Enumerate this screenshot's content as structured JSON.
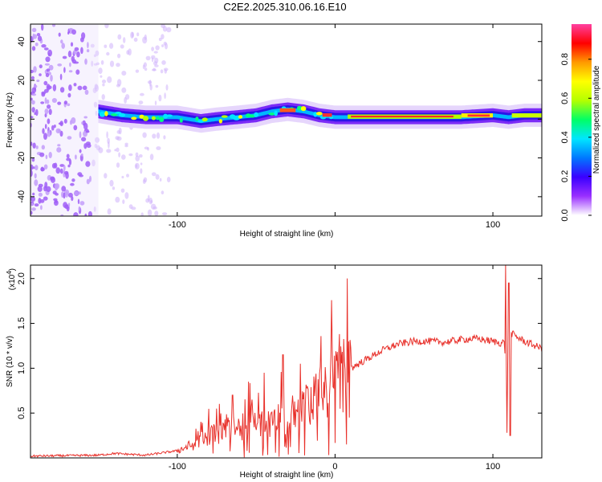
{
  "title": "C2E2.2025.310.06.16.E10",
  "chart_data": [
    {
      "type": "heatmap",
      "name": "spectrogram",
      "xlabel": "Height of straight line (km)",
      "ylabel": "Frequency (Hz)",
      "xlim": [
        -193,
        131
      ],
      "ylim": [
        -50,
        49
      ],
      "xticks": [
        -100,
        0,
        100
      ],
      "xtick_labels": [
        "-100",
        "",
        "100"
      ],
      "yticks": [
        -40,
        -20,
        0,
        20,
        40
      ],
      "ytick_labels": [
        "-40",
        "-20",
        "0",
        "20",
        "40"
      ],
      "noise_region_x": [
        -193,
        -105
      ],
      "ridge": {
        "x": [
          -150,
          -135,
          -120,
          -100,
          -85,
          -75,
          -62,
          -50,
          -40,
          -30,
          -20,
          -10,
          0,
          20,
          50,
          80,
          100,
          110,
          120,
          131
        ],
        "y": [
          4,
          2,
          1,
          1,
          -1,
          0,
          1,
          2,
          4,
          5,
          4,
          2,
          1,
          1,
          1,
          1,
          2,
          1,
          2,
          2
        ]
      },
      "colorbar": {
        "label": "Normalized spectral amplitude",
        "range": [
          0,
          1
        ],
        "ticks": [
          0.0,
          0.2,
          0.4,
          0.6,
          0.8
        ],
        "tick_labels": [
          "0.0",
          "0.2",
          "0.4",
          "0.6",
          "0.8"
        ],
        "colormap": [
          "#ffffff",
          "#9a30ff",
          "#3a00ff",
          "#0078ff",
          "#00e6ff",
          "#00ff66",
          "#b4ff00",
          "#ffff00",
          "#ff9a00",
          "#ff0000",
          "#ff40a0"
        ]
      }
    },
    {
      "type": "line",
      "name": "snr",
      "xlabel": "Height of straight line (km)",
      "ylabel": "SNR (10 * v/v)",
      "y_multiplier_label": "(x10",
      "y_multiplier_exp": "4",
      "y_multiplier_close": ")",
      "xlim": [
        -193,
        131
      ],
      "ylim": [
        0,
        2.15
      ],
      "xticks": [
        -100,
        0,
        100
      ],
      "xtick_labels": [
        "-100",
        "0",
        "100"
      ],
      "yticks": [
        0.5,
        1.0,
        1.5,
        2.0
      ],
      "ytick_labels": [
        "0.5",
        "1.0",
        "1.5",
        "2.0"
      ],
      "color": "#e8302a",
      "envelope": {
        "x": [
          -193,
          -150,
          -140,
          -120,
          -100,
          -90,
          -80,
          -70,
          -60,
          -50,
          -40,
          -30,
          -20,
          -10,
          0,
          5,
          10,
          20,
          30,
          40,
          50,
          60,
          70,
          80,
          90,
          100,
          105,
          107,
          109,
          111,
          115,
          120,
          131
        ],
        "y": [
          0.02,
          0.03,
          0.05,
          0.03,
          0.08,
          0.15,
          0.25,
          0.3,
          0.35,
          0.38,
          0.42,
          0.45,
          0.55,
          0.7,
          0.85,
          0.92,
          1.0,
          1.1,
          1.2,
          1.27,
          1.3,
          1.3,
          1.29,
          1.32,
          1.33,
          1.3,
          1.28,
          1.3,
          0.9,
          1.4,
          1.35,
          1.3,
          1.22
        ]
      },
      "spikes": [
        {
          "x": -75,
          "y": 0.55
        },
        {
          "x": -65,
          "y": 0.7
        },
        {
          "x": -55,
          "y": 0.85
        },
        {
          "x": -45,
          "y": 0.95
        },
        {
          "x": -33,
          "y": 1.15
        },
        {
          "x": -22,
          "y": 1.05
        },
        {
          "x": 9,
          "y": 0.45
        },
        {
          "x": 108,
          "y": 2.15
        },
        {
          "x": 109,
          "y": 0.28
        },
        {
          "x": 110,
          "y": 1.95
        },
        {
          "x": 111,
          "y": 0.25
        }
      ]
    }
  ]
}
